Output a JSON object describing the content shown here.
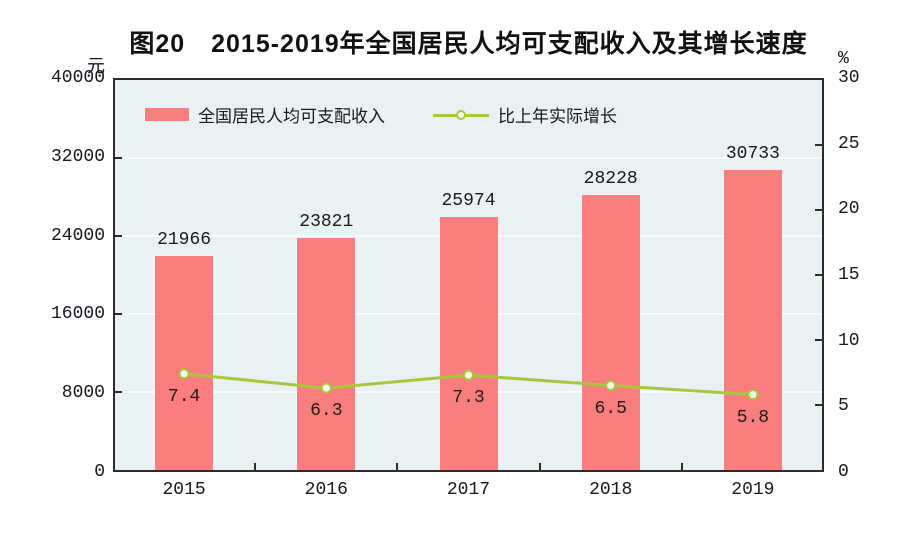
{
  "title": "图20　2015-2019年全国居民人均可支配收入及其增长速度",
  "left_axis": {
    "unit": "元",
    "tick_labels": [
      "40000",
      "32000",
      "24000",
      "16000",
      "8000",
      "0"
    ],
    "min": 0,
    "max": 40000
  },
  "right_axis": {
    "unit": "%",
    "tick_labels": [
      "30",
      "25",
      "20",
      "15",
      "10",
      "5",
      "0"
    ],
    "min": 0,
    "max": 30
  },
  "legend": {
    "bar_label": "全国居民人均可支配收入",
    "line_label": "比上年实际增长"
  },
  "chart_data": {
    "type": "bar",
    "title": "图20　2015-2019年全国居民人均可支配收入及其增长速度",
    "categories": [
      "2015",
      "2016",
      "2017",
      "2018",
      "2019"
    ],
    "series": [
      {
        "name": "全国居民人均可支配收入",
        "type": "bar",
        "axis": "left",
        "unit": "元",
        "values": [
          21966,
          23821,
          25974,
          28228,
          30733
        ]
      },
      {
        "name": "比上年实际增长",
        "type": "line",
        "axis": "right",
        "unit": "%",
        "values": [
          7.4,
          6.3,
          7.3,
          6.5,
          5.8
        ]
      }
    ],
    "value_labels": {
      "bar": [
        "21966",
        "23821",
        "25974",
        "28228",
        "30733"
      ],
      "line": [
        "7.4",
        "6.3",
        "7.3",
        "6.5",
        "5.8"
      ]
    },
    "left_ylim": [
      0,
      40000
    ],
    "right_ylim": [
      0,
      30
    ],
    "grid": true,
    "legend_position": "top-inside"
  },
  "colors": {
    "bar_fill": "#fb7e7e",
    "line_stroke": "#a9c73c",
    "marker_fill": "#fdfff2",
    "plot_background": "#eaf1f4",
    "grid_line": "#fafcfc",
    "frame": "#2b2b2b",
    "text": "#1a1a1a"
  }
}
